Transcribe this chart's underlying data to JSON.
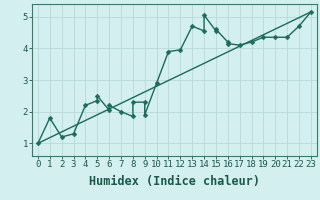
{
  "title": "",
  "xlabel": "Humidex (Indice chaleur)",
  "bg_color": "#d4efef",
  "grid_color": "#b8d8d8",
  "line_color": "#1a6b5a",
  "scatter_x": [
    0,
    1,
    2,
    3,
    4,
    5,
    5,
    6,
    6,
    7,
    8,
    8,
    9,
    9,
    10,
    11,
    12,
    13,
    14,
    14,
    15,
    15,
    16,
    16,
    17,
    18,
    19,
    20,
    21,
    22,
    23
  ],
  "scatter_y": [
    1.0,
    1.8,
    1.2,
    1.3,
    2.2,
    2.35,
    2.5,
    2.05,
    2.2,
    2.0,
    1.85,
    2.3,
    2.3,
    1.9,
    2.9,
    3.9,
    3.95,
    4.7,
    4.55,
    5.05,
    4.55,
    4.6,
    4.2,
    4.15,
    4.1,
    4.2,
    4.35,
    4.35,
    4.35,
    4.7,
    5.15
  ],
  "trend_x": [
    0,
    23
  ],
  "trend_y": [
    1.0,
    5.15
  ],
  "xlim": [
    -0.5,
    23.5
  ],
  "ylim": [
    0.6,
    5.4
  ],
  "yticks": [
    1,
    2,
    3,
    4,
    5
  ],
  "xticks": [
    0,
    1,
    2,
    3,
    4,
    5,
    6,
    7,
    8,
    9,
    10,
    11,
    12,
    13,
    14,
    15,
    16,
    17,
    18,
    19,
    20,
    21,
    22,
    23
  ],
  "xtick_labels": [
    "0",
    "1",
    "2",
    "3",
    "4",
    "5",
    "6",
    "7",
    "8",
    "9",
    "10",
    "11",
    "12",
    "13",
    "14",
    "15",
    "16",
    "17",
    "18",
    "19",
    "20",
    "21",
    "22",
    "23"
  ],
  "tick_fontsize": 6.5,
  "xlabel_fontsize": 8.5,
  "marker_size": 2.5,
  "line_width": 1.0,
  "spine_color": "#3a7a6a",
  "tick_color": "#1a5a4a",
  "xlabel_color": "#1a5a4a"
}
